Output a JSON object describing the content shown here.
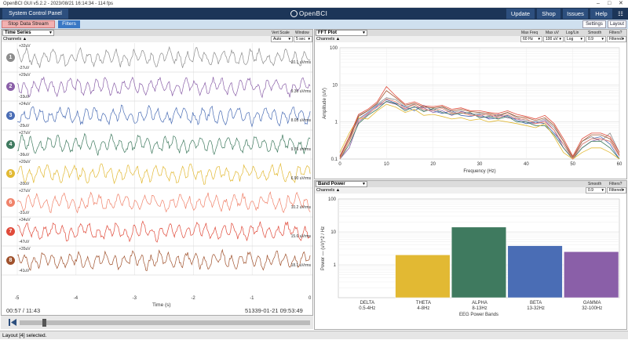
{
  "window": {
    "title": "OpenBCI GUI v5.2.2 - 2023/08/21 16:14:34 - 114 fps"
  },
  "nav": {
    "control_panel": "System Control Panel",
    "logo": "OpenBCI",
    "update": "Update",
    "shop": "Shop",
    "issues": "Issues",
    "help": "Help"
  },
  "toolbar": {
    "stop": "Stop Data Stream",
    "filters": "Filters",
    "settings": "Settings",
    "layout": "Layout"
  },
  "timeseries": {
    "widget": "Time Series",
    "vert_scale_label": "Vert Scale",
    "vert_scale": "Auto",
    "window_label": "Window",
    "window": "5 sec",
    "channels_label": "Channels",
    "channels": [
      {
        "num": "1",
        "top": "+32uV",
        "bottom": "-27uV",
        "rms": "10.1 uVrms",
        "color": "#8c8c8c"
      },
      {
        "num": "2",
        "top": "+29uV",
        "bottom": "-33uV",
        "rms": "9.36 uVrms",
        "color": "#8a5fa8"
      },
      {
        "num": "3",
        "top": "+24uV",
        "bottom": "-25uV",
        "rms": "8.05 uVrms",
        "color": "#4a6db5"
      },
      {
        "num": "4",
        "top": "+27uV",
        "bottom": "-36uV",
        "rms": "9.76 uVrms",
        "color": "#3f7a5f"
      },
      {
        "num": "5",
        "top": "+20uV",
        "bottom": "-20uV",
        "rms": "6.90 uVrms",
        "color": "#e2b933"
      },
      {
        "num": "6",
        "top": "+27uV",
        "bottom": "-31uV",
        "rms": "10.2 uVrms",
        "color": "#f0826a"
      },
      {
        "num": "7",
        "top": "+34uV",
        "bottom": "-47uV",
        "rms": "15.6 uVrms",
        "color": "#e04a3a"
      },
      {
        "num": "8",
        "top": "+35uV",
        "bottom": "-41uV",
        "rms": "18.1 uVrms",
        "color": "#a0522d"
      }
    ],
    "xticks": [
      "-5",
      "-4",
      "-3",
      "-2",
      "-1",
      "0"
    ],
    "xlabel": "Time (s)",
    "elapsed": "00:57 / 11:43",
    "timestamp": "51339-01-21 09:53:49"
  },
  "fft": {
    "widget": "FFT Plot",
    "max_freq_label": "Max Freq",
    "max_freq": "60 Hz",
    "max_uv_label": "Max uV",
    "max_uv": "100 uV",
    "loglin_label": "Log/Lin",
    "loglin": "Log",
    "smooth_label": "Smooth",
    "smooth": "0.9",
    "filters_label": "Filters?",
    "filters": "Filtered",
    "channels_label": "Channels",
    "ylabel": "Amplitude (uV)",
    "xlabel": "Frequency (Hz)",
    "yticks": [
      "100",
      "10",
      "1",
      "0.1"
    ],
    "xticks": [
      "0",
      "10",
      "20",
      "30",
      "40",
      "50",
      "60"
    ]
  },
  "bandpower": {
    "widget": "Band Power",
    "smooth_label": "Smooth",
    "smooth": "0.9",
    "filters_label": "Filters?",
    "filters": "Filtered",
    "channels_label": "Channels",
    "ylabel": "Power — (uV)^2 / Hz",
    "xlabel": "EEG Power Bands",
    "yticks": [
      "100",
      "10",
      "1"
    ]
  },
  "chart_data": [
    {
      "type": "bar",
      "title": "",
      "xlabel": "EEG Power Bands",
      "ylabel": "Power — (uV)^2 / Hz",
      "yscale": "log",
      "ylim": [
        0.1,
        100
      ],
      "categories": [
        "DELTA",
        "THETA",
        "ALPHA",
        "BETA",
        "GAMMA"
      ],
      "ranges": [
        "0.5-4Hz",
        "4-8Hz",
        "8-13Hz",
        "13-32Hz",
        "32-100Hz"
      ],
      "values": [
        0,
        2.0,
        14,
        3.8,
        2.5
      ],
      "colors": [
        "#ffffff",
        "#e2b933",
        "#3f7a5f",
        "#4a6db5",
        "#8a5fa8"
      ]
    },
    {
      "type": "line",
      "xlabel": "Frequency (Hz)",
      "ylabel": "Amplitude (uV)",
      "yscale": "log",
      "xlim": [
        0,
        60
      ],
      "ylim": [
        0.1,
        100
      ],
      "x": [
        0,
        2,
        4,
        6,
        8,
        10,
        12,
        14,
        16,
        18,
        20,
        22,
        24,
        26,
        28,
        30,
        32,
        34,
        36,
        38,
        40,
        42,
        44,
        46,
        48,
        50,
        52,
        54,
        56,
        58,
        60
      ],
      "series": [
        {
          "color": "#8c8c8c",
          "values": [
            0.1,
            0.3,
            1.5,
            2.0,
            3.0,
            4.5,
            4.0,
            2.5,
            3.0,
            2.0,
            2.2,
            2.5,
            1.8,
            2.0,
            1.6,
            1.7,
            1.5,
            1.4,
            1.8,
            1.3,
            1.1,
            1.0,
            1.2,
            0.7,
            0.3,
            0.1,
            0.3,
            0.4,
            0.3,
            0.5,
            0.15
          ]
        },
        {
          "color": "#8a5fa8",
          "values": [
            0.1,
            0.2,
            1.0,
            1.6,
            2.6,
            3.5,
            3.0,
            2.2,
            2.5,
            2.4,
            1.8,
            2.0,
            1.5,
            1.9,
            1.7,
            1.4,
            1.3,
            1.6,
            1.3,
            1.2,
            1.0,
            0.9,
            1.1,
            0.6,
            0.2,
            0.1,
            0.2,
            0.3,
            0.35,
            0.3,
            0.12
          ]
        },
        {
          "color": "#4a6db5",
          "values": [
            0.12,
            0.4,
            1.2,
            1.8,
            2.8,
            4.0,
            3.2,
            2.6,
            2.0,
            2.8,
            2.0,
            1.7,
            2.0,
            1.5,
            1.4,
            1.6,
            1.2,
            1.3,
            1.5,
            1.1,
            0.9,
            1.0,
            0.9,
            0.5,
            0.25,
            0.1,
            0.25,
            0.35,
            0.4,
            0.25,
            0.1
          ]
        },
        {
          "color": "#3f7a5f",
          "values": [
            0.1,
            0.25,
            0.9,
            1.5,
            2.2,
            3.6,
            3.1,
            2.0,
            2.6,
            1.9,
            2.3,
            1.8,
            1.6,
            1.7,
            1.8,
            1.3,
            1.4,
            1.2,
            1.4,
            1.0,
            1.0,
            0.8,
            0.8,
            0.45,
            0.2,
            0.1,
            0.2,
            0.3,
            0.3,
            0.2,
            0.1
          ]
        },
        {
          "color": "#e2b933",
          "values": [
            0.15,
            0.5,
            1.3,
            1.2,
            2.0,
            3.0,
            2.5,
            1.8,
            2.2,
            1.5,
            1.6,
            1.4,
            1.2,
            1.3,
            1.1,
            1.2,
            1.0,
            1.1,
            1.0,
            0.9,
            0.8,
            0.7,
            0.9,
            0.4,
            0.15,
            0.1,
            0.15,
            0.2,
            0.2,
            0.15,
            0.1
          ]
        },
        {
          "color": "#f0826a",
          "values": [
            0.1,
            0.3,
            1.1,
            1.7,
            2.5,
            4.2,
            3.5,
            2.3,
            2.9,
            2.2,
            2.0,
            2.3,
            1.7,
            1.8,
            1.5,
            1.5,
            1.6,
            1.3,
            1.6,
            1.2,
            1.2,
            0.9,
            1.0,
            0.6,
            0.25,
            0.1,
            0.25,
            0.35,
            0.35,
            0.3,
            0.12
          ]
        },
        {
          "color": "#e04a3a",
          "values": [
            0.12,
            0.4,
            1.6,
            2.2,
            3.5,
            9.0,
            5.0,
            3.0,
            3.5,
            2.7,
            2.6,
            2.8,
            2.2,
            2.4,
            2.0,
            2.0,
            1.8,
            1.7,
            2.0,
            1.6,
            1.4,
            1.2,
            1.5,
            0.9,
            0.35,
            0.12,
            0.35,
            0.5,
            0.5,
            0.4,
            0.15
          ]
        },
        {
          "color": "#a0522d",
          "values": [
            0.11,
            0.35,
            1.4,
            2.0,
            3.2,
            7.0,
            4.5,
            2.8,
            3.2,
            2.5,
            2.4,
            2.6,
            2.0,
            2.2,
            1.9,
            1.8,
            1.7,
            1.5,
            1.8,
            1.4,
            1.3,
            1.1,
            1.3,
            0.8,
            0.3,
            0.11,
            0.3,
            0.45,
            0.45,
            0.35,
            0.13
          ]
        }
      ]
    }
  ],
  "status": {
    "text": "Layout [4] selected."
  }
}
